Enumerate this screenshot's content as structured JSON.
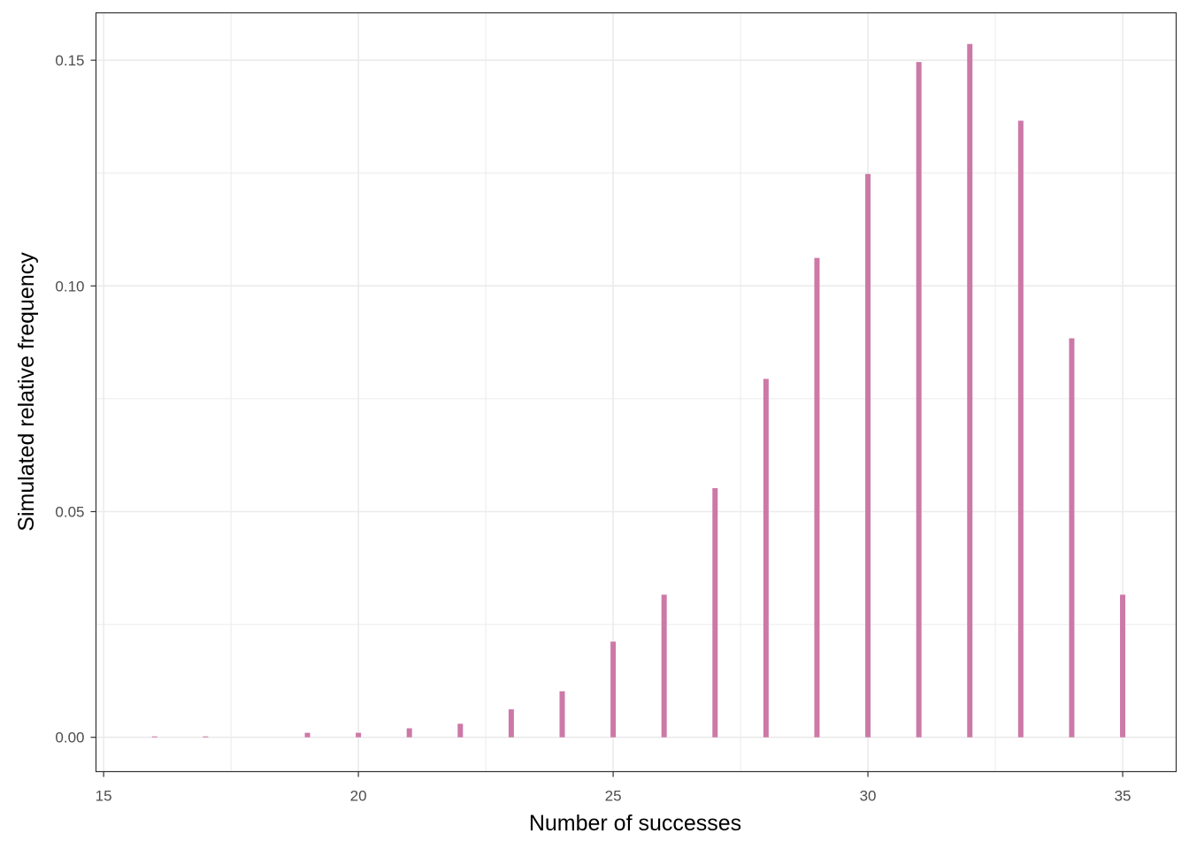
{
  "chart_data": {
    "type": "bar",
    "title": "",
    "xlabel": "Number of successes",
    "ylabel": "Simulated relative frequency",
    "xlim": [
      14.85,
      36.05
    ],
    "ylim": [
      -0.0076,
      0.1605
    ],
    "x_ticks": [
      15,
      20,
      25,
      30,
      35
    ],
    "y_ticks": [
      0.0,
      0.05,
      0.1,
      0.15
    ],
    "x_tick_labels": [
      "15",
      "20",
      "25",
      "30",
      "35"
    ],
    "y_tick_labels": [
      "0.00",
      "0.05",
      "0.10",
      "0.15"
    ],
    "x_minor_ticks": [
      17.5,
      22.5,
      27.5,
      32.5
    ],
    "y_minor_ticks": [
      0.025,
      0.075,
      0.125
    ],
    "grid": true,
    "bar_color": "#cc79a7",
    "x": [
      16,
      17,
      18,
      19,
      20,
      21,
      22,
      23,
      24,
      25,
      26,
      27,
      28,
      29,
      30,
      31,
      32,
      33,
      34,
      35
    ],
    "values": [
      0.0002,
      0.0002,
      0,
      0.001,
      0.001,
      0.002,
      0.003,
      0.0062,
      0.0102,
      0.0212,
      0.0316,
      0.0552,
      0.0794,
      0.1062,
      0.1248,
      0.1496,
      0.1536,
      0.1366,
      0.0884,
      0.0316
    ]
  }
}
